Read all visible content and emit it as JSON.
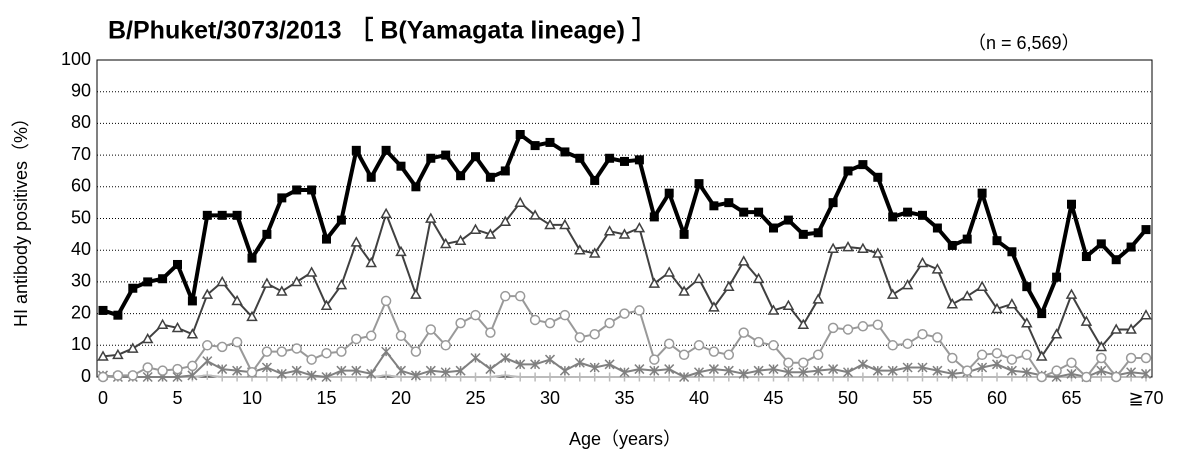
{
  "chart_data": {
    "type": "line",
    "title": "B/Phuket/3073/2013 ［ B(Yamagata lineage) ］",
    "annotation": "（n = 6,569）",
    "ylabel": "HI antibody positives（%）",
    "xlabel": "Age（years）",
    "categories": [
      "0",
      null,
      null,
      null,
      null,
      "5",
      null,
      null,
      null,
      null,
      "10",
      null,
      null,
      null,
      null,
      "15",
      null,
      null,
      null,
      null,
      "20",
      null,
      null,
      null,
      null,
      "25",
      null,
      null,
      null,
      null,
      "30",
      null,
      null,
      null,
      null,
      "35",
      null,
      null,
      null,
      null,
      "40",
      null,
      null,
      null,
      null,
      "45",
      null,
      null,
      null,
      null,
      "50",
      null,
      null,
      null,
      null,
      "55",
      null,
      null,
      null,
      null,
      "60",
      null,
      null,
      null,
      null,
      "65",
      null,
      null,
      null,
      null,
      "≧70"
    ],
    "ylim": [
      0,
      100
    ],
    "yticks": [
      0,
      10,
      20,
      30,
      40,
      50,
      60,
      70,
      80,
      90,
      100
    ],
    "grid": true,
    "series": [
      {
        "color": "#000000",
        "marker": "square",
        "line_width": 4,
        "values": [
          21,
          19.5,
          28,
          30,
          31,
          35.5,
          24,
          51,
          51,
          51,
          37.5,
          45,
          56.5,
          59,
          59,
          43.5,
          49.5,
          71.5,
          63,
          71.5,
          66.5,
          60,
          69,
          70,
          63.5,
          69.5,
          63,
          65,
          76.5,
          73,
          74,
          71,
          69,
          62,
          69,
          68,
          68.5,
          50.5,
          58,
          45,
          61,
          54,
          55,
          52,
          52,
          47,
          49.5,
          45,
          45.5,
          55,
          65,
          67,
          63,
          50.5,
          52,
          51,
          47,
          41.5,
          43.5,
          58,
          43,
          39.5,
          28.5,
          20,
          31.5,
          54.5,
          38,
          42,
          37,
          41,
          46.5
        ]
      },
      {
        "color": "#404040",
        "marker": "triangle",
        "line_width": 2,
        "values": [
          6.5,
          7,
          9,
          12,
          16.5,
          15.5,
          13.5,
          26,
          30,
          24,
          19,
          29.5,
          27,
          30,
          33,
          22.5,
          29,
          42.5,
          36,
          51.5,
          39.5,
          26,
          50,
          42,
          43,
          46.5,
          45,
          49,
          55,
          51,
          48,
          48,
          40,
          39,
          46,
          45,
          47,
          29.5,
          33,
          27,
          31,
          22,
          28.5,
          36.5,
          31,
          21,
          22.5,
          16.5,
          24.5,
          40.5,
          41,
          40.5,
          39,
          26,
          29,
          36,
          34,
          23,
          25.5,
          28.5,
          21.5,
          23,
          17,
          6.5,
          13.5,
          26,
          17.5,
          9.5,
          15,
          15,
          19.5
        ]
      },
      {
        "color": "#999999",
        "marker": "circle",
        "line_width": 2,
        "values": [
          0,
          0.5,
          0.5,
          3,
          2,
          2.5,
          3.5,
          10,
          9.5,
          11,
          1.5,
          8,
          8,
          9,
          5.5,
          7.5,
          8,
          12,
          13,
          24,
          13,
          8,
          15,
          10,
          17,
          19.5,
          14,
          25.5,
          25.5,
          18,
          17,
          19.5,
          12.5,
          13.5,
          17,
          20,
          21,
          5.5,
          10.5,
          7,
          10,
          8,
          7,
          14,
          11,
          10,
          4.5,
          4.5,
          7,
          15.5,
          15,
          16,
          16.5,
          10,
          10.5,
          13.5,
          12.5,
          6,
          2,
          7,
          7.5,
          5.5,
          7,
          0,
          2,
          4.5,
          0,
          6,
          0,
          6,
          6
        ]
      },
      {
        "color": "#808080",
        "marker": "asterisk",
        "line_width": 2,
        "values": [
          0.5,
          0,
          0,
          0,
          0,
          0,
          0.5,
          5,
          2.5,
          2,
          1.5,
          3,
          1,
          2,
          0.5,
          0,
          2,
          2,
          1,
          8,
          2,
          0.5,
          2,
          1.5,
          2,
          6,
          2.5,
          6,
          4,
          4,
          5.5,
          2,
          4.5,
          3,
          4,
          1.5,
          2.5,
          2,
          2.5,
          0,
          1.5,
          2.5,
          2,
          1,
          2,
          2.5,
          1.5,
          1.5,
          2,
          2.5,
          1.5,
          4,
          2,
          2,
          3,
          3,
          2,
          1,
          1.5,
          3,
          4,
          2,
          1.5,
          0.5,
          0,
          1,
          0,
          2,
          0.5,
          1.5,
          1
        ]
      },
      {
        "color": "#bbbbbb",
        "marker": "plus",
        "line_width": 2,
        "values": [
          0,
          0,
          0,
          0,
          0,
          0,
          0,
          0.5,
          0,
          0,
          0,
          0,
          0,
          0,
          0,
          0,
          0,
          0,
          0,
          0.5,
          0,
          0,
          0,
          0,
          0,
          0,
          0,
          0.5,
          0,
          0,
          0,
          0,
          0,
          0,
          0,
          0,
          0,
          0,
          0,
          0,
          0,
          0,
          0,
          0,
          0,
          0,
          0,
          0,
          0,
          0,
          0,
          0,
          0,
          0,
          0,
          0,
          0,
          0,
          0,
          0,
          0,
          0,
          0,
          0,
          0,
          0,
          0,
          0,
          0,
          0,
          0
        ]
      }
    ]
  }
}
